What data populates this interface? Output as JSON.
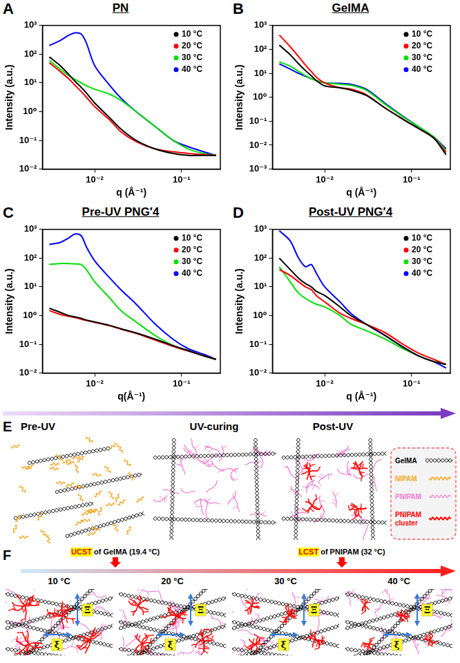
{
  "chart_data": [
    {
      "panel": "A",
      "type": "line",
      "title": "PN",
      "x_label": "q (Å⁻¹)",
      "y_label": "Intensity (a.u.)",
      "log": true,
      "grid": false,
      "legend": "top-right",
      "xlim": [
        0.0025,
        0.28
      ],
      "ylim": [
        0.01,
        1000
      ],
      "xticks": [
        {
          "value": 0.01,
          "label": "10⁻²"
        },
        {
          "value": 0.1,
          "label": "10⁻¹"
        }
      ],
      "yticks": [
        {
          "value": 0.01,
          "label": "10⁻²"
        },
        {
          "value": 0.1,
          "label": "10⁻¹"
        },
        {
          "value": 1,
          "label": "10⁰"
        },
        {
          "value": 10,
          "label": "10¹"
        },
        {
          "value": 100,
          "label": "10²"
        },
        {
          "value": 1000,
          "label": "10³"
        }
      ],
      "x": [
        0.003,
        0.004,
        0.005,
        0.006,
        0.007,
        0.008,
        0.01,
        0.015,
        0.02,
        0.03,
        0.05,
        0.08,
        0.12,
        0.18,
        0.25
      ],
      "series": [
        {
          "name": "10 °C",
          "color": "#000000",
          "values": [
            80,
            40,
            20,
            11,
            7,
            4.5,
            2,
            0.6,
            0.25,
            0.1,
            0.05,
            0.035,
            0.03,
            0.03,
            0.03
          ]
        },
        {
          "name": "20 °C",
          "color": "#ff0000",
          "values": [
            50,
            25,
            14,
            8,
            5,
            3.2,
            1.5,
            0.5,
            0.2,
            0.09,
            0.05,
            0.04,
            0.035,
            0.032,
            0.03
          ]
        },
        {
          "name": "30 °C",
          "color": "#00e000",
          "values": [
            60,
            30,
            18,
            13,
            10,
            8,
            6,
            4,
            2.5,
            1,
            0.3,
            0.1,
            0.05,
            0.035,
            0.03
          ]
        },
        {
          "name": "40 °C",
          "color": "#0000ff",
          "values": [
            200,
            300,
            450,
            550,
            500,
            250,
            40,
            8,
            3,
            1,
            0.3,
            0.1,
            0.06,
            0.04,
            0.03
          ]
        }
      ]
    },
    {
      "panel": "B",
      "type": "line",
      "title": "GelMA",
      "x_label": "q (Å⁻¹)",
      "y_label": "Intensity (a.u.)",
      "log": true,
      "grid": false,
      "legend": "top-right",
      "xlim": [
        0.0025,
        0.28
      ],
      "ylim": [
        0.001,
        1000
      ],
      "xticks": [
        {
          "value": 0.01,
          "label": "10⁻²"
        },
        {
          "value": 0.1,
          "label": "10⁻¹"
        }
      ],
      "yticks": [
        {
          "value": 0.001,
          "label": "10⁻³"
        },
        {
          "value": 0.01,
          "label": "10⁻²"
        },
        {
          "value": 0.1,
          "label": "10⁻¹"
        },
        {
          "value": 1,
          "label": "10⁰"
        },
        {
          "value": 10,
          "label": "10¹"
        },
        {
          "value": 100,
          "label": "10²"
        },
        {
          "value": 1000,
          "label": "10³"
        }
      ],
      "x": [
        0.003,
        0.004,
        0.005,
        0.006,
        0.007,
        0.008,
        0.01,
        0.015,
        0.02,
        0.03,
        0.05,
        0.08,
        0.12,
        0.18,
        0.25
      ],
      "series": [
        {
          "name": "10 °C",
          "color": "#000000",
          "values": [
            150,
            60,
            25,
            13,
            8,
            5,
            3,
            2.5,
            2,
            1.2,
            0.35,
            0.12,
            0.05,
            0.02,
            0.004
          ]
        },
        {
          "name": "20 °C",
          "color": "#ff0000",
          "values": [
            400,
            130,
            50,
            22,
            12,
            7,
            4,
            2.5,
            2.2,
            1.3,
            0.35,
            0.12,
            0.05,
            0.02,
            0.005
          ]
        },
        {
          "name": "30 °C",
          "color": "#00e000",
          "values": [
            30,
            20,
            12,
            8,
            6,
            5,
            4,
            3.5,
            3.2,
            2,
            0.5,
            0.15,
            0.06,
            0.022,
            0.006
          ]
        },
        {
          "name": "40 °C",
          "color": "#0000ff",
          "values": [
            25,
            15,
            10,
            7.5,
            6,
            5,
            4,
            3.8,
            3.5,
            2.2,
            0.55,
            0.16,
            0.06,
            0.022,
            0.007
          ]
        }
      ]
    },
    {
      "panel": "C",
      "type": "line",
      "title": "Pre-UV PNG′4",
      "x_label": "q(Å⁻¹)",
      "y_label": "Intensity (a.u.)",
      "log": true,
      "grid": false,
      "legend": "top-right",
      "xlim": [
        0.0025,
        0.28
      ],
      "ylim": [
        0.01,
        1000
      ],
      "xticks": [
        {
          "value": 0.01,
          "label": "10⁻²"
        },
        {
          "value": 0.1,
          "label": "10⁻¹"
        }
      ],
      "yticks": [
        {
          "value": 0.01,
          "label": "10⁻²"
        },
        {
          "value": 0.1,
          "label": "10⁻¹"
        },
        {
          "value": 1,
          "label": "10⁰"
        },
        {
          "value": 10,
          "label": "10¹"
        },
        {
          "value": 100,
          "label": "10²"
        },
        {
          "value": 1000,
          "label": "10³"
        }
      ],
      "x": [
        0.003,
        0.004,
        0.005,
        0.006,
        0.007,
        0.008,
        0.01,
        0.015,
        0.02,
        0.03,
        0.05,
        0.08,
        0.12,
        0.18,
        0.25
      ],
      "series": [
        {
          "name": "10 °C",
          "color": "#000000",
          "values": [
            1.8,
            1.3,
            1.0,
            0.9,
            0.8,
            0.7,
            0.6,
            0.45,
            0.35,
            0.25,
            0.15,
            0.09,
            0.06,
            0.04,
            0.03
          ]
        },
        {
          "name": "20 °C",
          "color": "#ff0000",
          "values": [
            1.5,
            1.1,
            0.95,
            0.85,
            0.75,
            0.68,
            0.58,
            0.44,
            0.34,
            0.24,
            0.14,
            0.085,
            0.058,
            0.04,
            0.03
          ]
        },
        {
          "name": "30 °C",
          "color": "#00e000",
          "values": [
            60,
            65,
            65,
            63,
            60,
            40,
            15,
            4,
            1.5,
            0.6,
            0.2,
            0.09,
            0.06,
            0.04,
            0.03
          ]
        },
        {
          "name": "40 °C",
          "color": "#0000ff",
          "values": [
            300,
            350,
            500,
            700,
            600,
            250,
            80,
            20,
            8,
            2.5,
            0.5,
            0.15,
            0.07,
            0.045,
            0.03
          ]
        }
      ]
    },
    {
      "panel": "D",
      "type": "line",
      "title": "Post-UV PNG′4",
      "x_label": "q (Å⁻¹)",
      "y_label": "Intensity (a.u.)",
      "log": true,
      "grid": false,
      "legend": "top-right",
      "xlim": [
        0.0025,
        0.28
      ],
      "ylim": [
        0.01,
        1000
      ],
      "xticks": [
        {
          "value": 0.01,
          "label": "10⁻²"
        },
        {
          "value": 0.1,
          "label": "10⁻¹"
        }
      ],
      "yticks": [
        {
          "value": 0.01,
          "label": "10⁻²"
        },
        {
          "value": 0.1,
          "label": "10⁻¹"
        },
        {
          "value": 1,
          "label": "10⁰"
        },
        {
          "value": 10,
          "label": "10¹"
        },
        {
          "value": 100,
          "label": "10²"
        },
        {
          "value": 1000,
          "label": "10³"
        }
      ],
      "x": [
        0.003,
        0.004,
        0.005,
        0.006,
        0.007,
        0.008,
        0.01,
        0.015,
        0.02,
        0.03,
        0.05,
        0.08,
        0.12,
        0.18,
        0.25
      ],
      "series": [
        {
          "name": "10 °C",
          "color": "#000000",
          "values": [
            100,
            40,
            20,
            13,
            10,
            7,
            5,
            2,
            1,
            0.5,
            0.2,
            0.08,
            0.04,
            0.025,
            0.02
          ]
        },
        {
          "name": "20 °C",
          "color": "#ff0000",
          "values": [
            40,
            25,
            15,
            10,
            8,
            5,
            3,
            1.2,
            0.8,
            0.5,
            0.25,
            0.1,
            0.05,
            0.03,
            0.02
          ]
        },
        {
          "name": "30 °C",
          "color": "#00e000",
          "values": [
            50,
            15,
            6,
            4,
            3,
            2.5,
            2,
            1,
            0.5,
            0.3,
            0.15,
            0.07,
            0.04,
            0.025,
            0.02
          ]
        },
        {
          "name": "40 °C",
          "color": "#0000ff",
          "values": [
            900,
            400,
            100,
            50,
            60,
            30,
            10,
            3,
            1.2,
            0.5,
            0.2,
            0.08,
            0.04,
            0.025,
            0.015
          ]
        }
      ]
    }
  ],
  "diagrams": {
    "E": {
      "panel": "E",
      "stages": [
        "Pre-UV",
        "UV-curing",
        "Post-UV"
      ],
      "legend": [
        {
          "label": "GelMA",
          "color": "#000000"
        },
        {
          "label": "NIPAM",
          "color": "#f5a623"
        },
        {
          "label": "PNIPAM",
          "color": "#f07ad2"
        },
        {
          "label": "PNIPAM cluster",
          "color": "#ff0000"
        }
      ]
    },
    "F": {
      "panel": "F",
      "temperatures": [
        "10 °C",
        "20 °C",
        "30 °C",
        "40 °C"
      ],
      "transitions": [
        {
          "highlight": "UCST",
          "text": " of GelMA (19.4 °C)"
        },
        {
          "highlight": "LCST",
          "text": " of PNIPAM (32 °C)"
        }
      ],
      "lengths": [
        "ξ",
        "Ξ"
      ]
    }
  }
}
